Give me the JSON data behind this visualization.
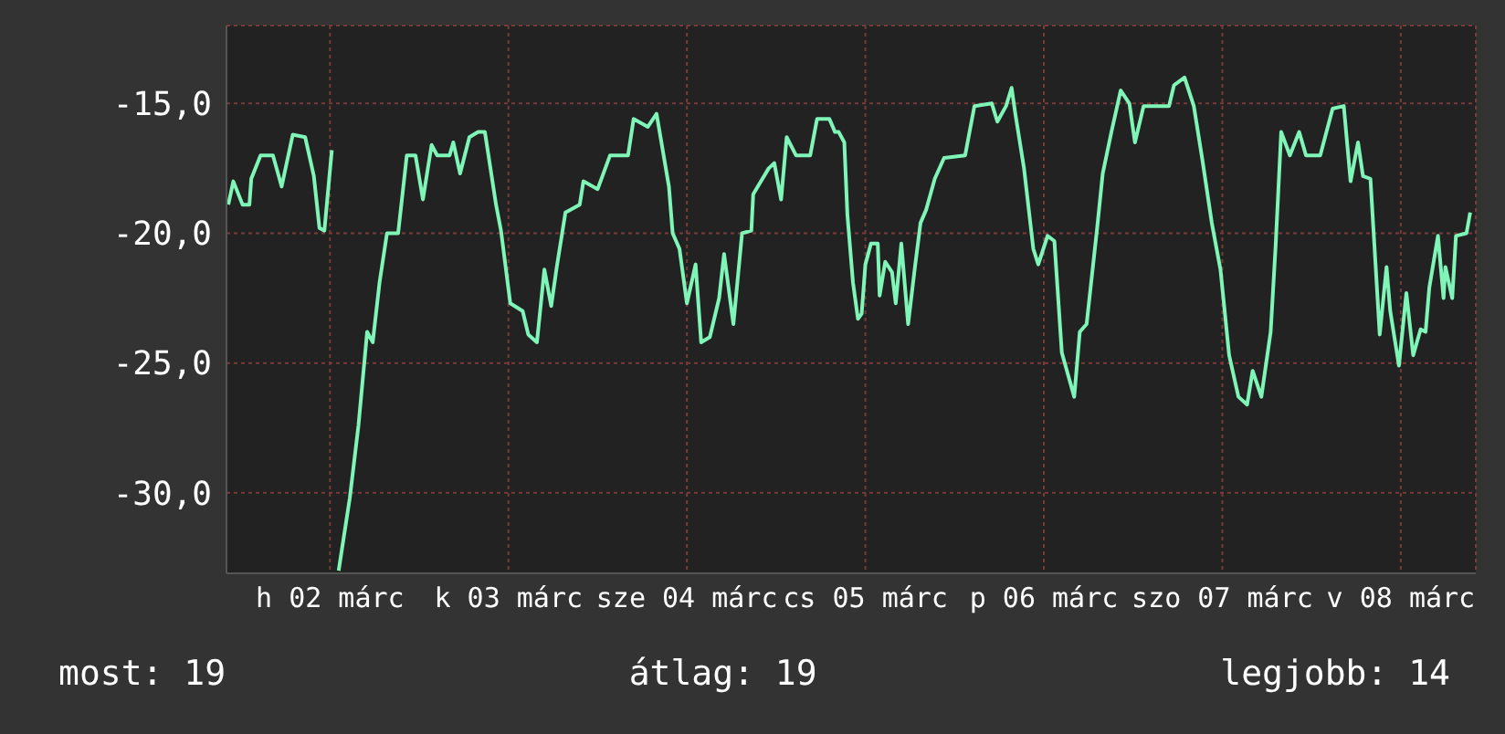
{
  "chart_data": {
    "type": "line",
    "color": "#7ff5b8",
    "x": [
      "--03-01T10:20",
      "--03-01T11:00",
      "--03-01T12:15",
      "--03-01T13:10",
      "--03-01T13:25",
      "--03-01T14:40",
      "--03-01T16:20",
      "--03-01T17:30",
      "--03-01T19:00",
      "--03-01T20:40",
      "--03-01T21:50",
      "--03-01T22:35",
      "--03-01T23:15",
      "--03-02T00:15",
      "--03-02T00:45",
      "--03-02T01:10",
      "--03-02T02:40",
      "--03-02T03:50",
      "--03-02T05:00",
      "--03-02T05:45",
      "--03-02T06:40",
      "--03-02T07:40",
      "--03-02T09:10",
      "--03-02T10:20",
      "--03-02T11:30",
      "--03-02T12:30",
      "--03-02T13:40",
      "--03-02T14:25",
      "--03-02T16:05",
      "--03-02T16:35",
      "--03-02T17:30",
      "--03-02T18:45",
      "--03-02T19:55",
      "--03-02T20:50",
      "--03-02T22:20",
      "--03-02T23:00",
      "--03-03T00:15",
      "--03-03T01:55",
      "--03-03T02:40",
      "--03-03T03:50",
      "--03-03T04:50",
      "--03-03T05:45",
      "--03-03T06:30",
      "--03-03T07:40",
      "--03-03T09:35",
      "--03-03T10:05",
      "--03-03T12:00",
      "--03-03T13:40",
      "--03-03T16:05",
      "--03-03T16:50",
      "--03-03T18:45",
      "--03-03T19:55",
      "--03-03T21:35",
      "--03-03T22:05",
      "--03-03T23:00",
      "--03-04T00:00",
      "--03-04T01:10",
      "--03-04T01:55",
      "--03-04T03:05",
      "--03-04T04:20",
      "--03-04T05:00",
      "--03-04T06:15",
      "--03-04T07:25",
      "--03-04T08:40",
      "--03-04T08:55",
      "--03-04T11:00",
      "--03-04T11:45",
      "--03-04T12:40",
      "--03-04T13:25",
      "--03-04T14:40",
      "--03-04T16:35",
      "--03-04T17:30",
      "--03-04T19:10",
      "--03-04T19:55",
      "--03-04T20:25",
      "--03-04T21:10",
      "--03-04T21:35",
      "--03-04T22:20",
      "--03-04T23:00",
      "--03-04T23:30",
      "--03-05T00:00",
      "--03-05T00:45",
      "--03-05T01:40",
      "--03-05T01:55",
      "--03-05T02:40",
      "--03-05T03:35",
      "--03-05T04:05",
      "--03-05T04:50",
      "--03-05T05:45",
      "--03-05T06:40",
      "--03-05T07:25",
      "--03-05T08:10",
      "--03-05T09:20",
      "--03-05T10:35",
      "--03-05T13:25",
      "--03-05T14:40",
      "--03-05T17:00",
      "--03-05T17:45",
      "--03-05T18:55",
      "--03-05T19:40",
      "--03-05T20:10",
      "--03-05T21:20",
      "--03-05T22:35",
      "--03-05T23:15",
      "--03-06T00:30",
      "--03-06T01:25",
      "--03-06T02:25",
      "--03-06T04:05",
      "--03-06T04:50",
      "--03-06T05:45",
      "--03-06T07:10",
      "--03-06T07:55",
      "--03-06T09:05",
      "--03-06T10:20",
      "--03-06T11:30",
      "--03-06T12:15",
      "--03-06T13:25",
      "--03-06T16:50",
      "--03-06T17:30",
      "--03-06T18:55",
      "--03-06T20:10",
      "--03-06T21:20",
      "--03-06T22:35",
      "--03-06T23:45",
      "--03-07T00:55",
      "--03-07T02:10",
      "--03-07T03:20",
      "--03-07T04:05",
      "--03-07T05:15",
      "--03-07T06:30",
      "--03-07T07:10",
      "--03-07T07:55",
      "--03-07T09:05",
      "--03-07T10:20",
      "--03-07T11:15",
      "--03-07T13:10",
      "--03-07T14:50",
      "--03-07T16:20",
      "--03-07T17:15",
      "--03-07T18:15",
      "--03-07T18:55",
      "--03-07T19:55",
      "--03-07T21:10",
      "--03-07T22:05",
      "--03-07T22:35",
      "--03-07T23:45",
      "--03-08T00:45",
      "--03-08T01:40",
      "--03-08T02:40",
      "--03-08T03:20",
      "--03-08T03:50",
      "--03-08T05:00",
      "--03-08T05:45",
      "--03-08T06:00",
      "--03-08T06:55",
      "--03-08T07:25",
      "--03-08T08:50",
      "--03-08T09:20"
    ],
    "values": [
      -18.9,
      -18.0,
      -18.9,
      -18.9,
      -17.9,
      -17.0,
      -17.0,
      -18.2,
      -16.2,
      -16.3,
      -17.8,
      -19.8,
      -19.9,
      -16.8,
      null,
      -33.0,
      -30.2,
      -27.4,
      -23.8,
      -24.2,
      -21.9,
      -20.0,
      -20.0,
      -17.0,
      -17.0,
      -18.7,
      -16.6,
      -17.0,
      -17.0,
      -16.5,
      -17.7,
      -16.3,
      -16.1,
      -16.1,
      -18.9,
      -19.9,
      -22.7,
      -23.0,
      -23.9,
      -24.2,
      -21.4,
      -22.8,
      -21.3,
      -19.2,
      -18.9,
      -18.0,
      -18.3,
      -17.0,
      -17.0,
      -15.6,
      -15.9,
      -15.4,
      -18.2,
      -20.0,
      -20.6,
      -22.7,
      -21.2,
      -24.2,
      -24.0,
      -22.5,
      -20.8,
      -23.5,
      -20.0,
      -19.9,
      -18.5,
      -17.5,
      -17.3,
      -18.7,
      -16.3,
      -17.0,
      -17.0,
      -15.6,
      -15.6,
      -16.1,
      -16.1,
      -16.5,
      -19.3,
      -21.9,
      -23.3,
      -23.1,
      -21.2,
      -20.4,
      -20.4,
      -22.4,
      -21.1,
      -21.5,
      -22.7,
      -20.4,
      -23.5,
      -21.3,
      -19.6,
      -19.1,
      -17.9,
      -17.1,
      -17.0,
      -15.1,
      -15.0,
      -15.7,
      -15.1,
      -14.4,
      -15.4,
      -17.5,
      -20.6,
      -21.2,
      -20.1,
      -20.3,
      -24.6,
      -26.3,
      -23.8,
      -23.5,
      -19.8,
      -17.7,
      -16.1,
      -14.5,
      -15.0,
      -16.5,
      -15.1,
      -15.1,
      -14.3,
      -14.0,
      -15.1,
      -17.2,
      -19.6,
      -21.4,
      -24.7,
      -26.3,
      -26.6,
      -25.3,
      -26.3,
      -23.8,
      -20.5,
      -16.1,
      -17.0,
      -16.1,
      -17.0,
      -17.0,
      -15.2,
      -15.1,
      -18.0,
      -16.5,
      -17.8,
      -17.9,
      -23.9,
      -21.3,
      -23.0,
      -25.1,
      -22.3,
      -24.7,
      -23.7,
      -23.8,
      -22.1,
      -20.1,
      -22.5,
      -21.3,
      -22.5,
      -20.1,
      -20.0,
      -19.2
    ],
    "xlim": [
      "--03-01T10:05",
      "--03-08T10:05"
    ],
    "xticks": [
      {
        "value": "--03-02",
        "label": "h 02 márc"
      },
      {
        "value": "--03-03",
        "label": "k 03 márc"
      },
      {
        "value": "--03-04",
        "label": "sze 04 márc"
      },
      {
        "value": "--03-05",
        "label": "cs 05 márc"
      },
      {
        "value": "--03-06",
        "label": "p 06 márc"
      },
      {
        "value": "--03-07",
        "label": "szo 07 márc"
      },
      {
        "value": "--03-08",
        "label": "v 08 márc"
      }
    ],
    "ylim": [
      -33.1,
      -12
    ],
    "yticks": [
      {
        "value": -15,
        "label": "-15,0"
      },
      {
        "value": -20,
        "label": "-20,0"
      },
      {
        "value": -25,
        "label": "-25,0"
      },
      {
        "value": -30,
        "label": "-30,0"
      }
    ],
    "grid": true,
    "marker": "none",
    "line_style": "solid",
    "annotations": [
      "most: 19",
      "átlag: 19",
      "legjobb: 14"
    ]
  }
}
